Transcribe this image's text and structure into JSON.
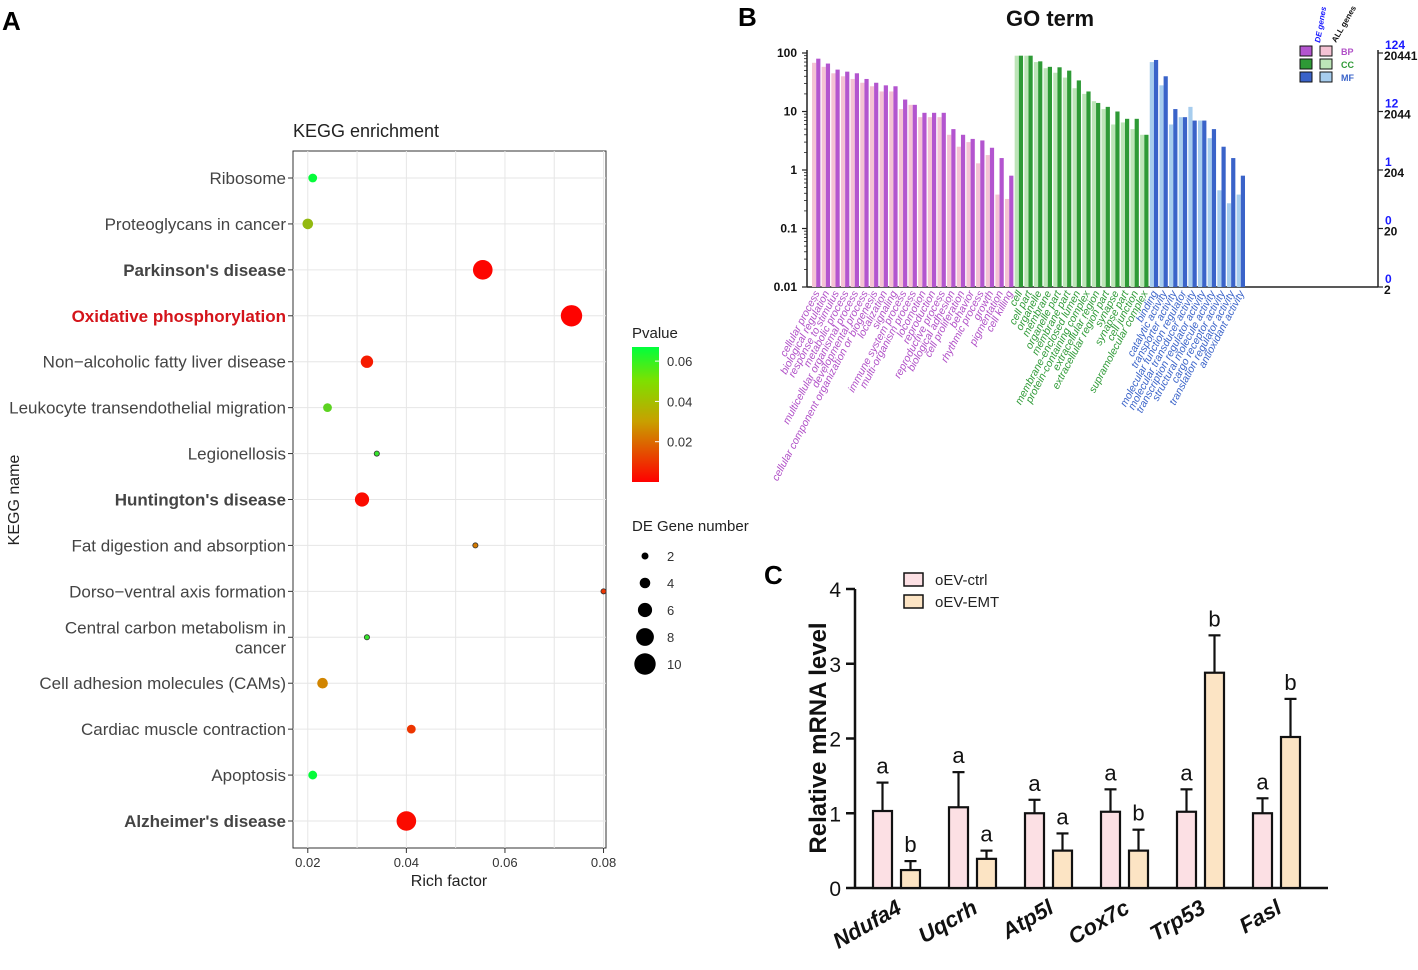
{
  "panels": {
    "a": "A",
    "b": "B",
    "c": "C"
  },
  "chart_data": [
    {
      "type": "scatter",
      "title": "KEGG enrichment",
      "xlabel": "Rich factor",
      "ylabel": "KEGG name",
      "xlim": [
        0.017,
        0.0805
      ],
      "xticks": [
        0.02,
        0.04,
        0.06,
        0.08
      ],
      "xtick_labels": [
        "0.02",
        "0.04",
        "0.06",
        "0.08"
      ],
      "grid": true,
      "pathways": [
        {
          "name": "Ribosome",
          "style": "normal",
          "x": 0.021,
          "genes": 3,
          "pvalue": 0.066
        },
        {
          "name": "Proteoglycans in cancer",
          "style": "normal",
          "x": 0.02,
          "genes": 4,
          "pvalue": 0.04
        },
        {
          "name": "Parkinson's disease",
          "style": "bold",
          "x": 0.0555,
          "genes": 9,
          "pvalue": 0.001
        },
        {
          "name": "Oxidative phosphorylation",
          "style": "red",
          "x": 0.0735,
          "genes": 10,
          "pvalue": 0.0005
        },
        {
          "name": "Non−alcoholic fatty liver disease",
          "style": "normal",
          "x": 0.032,
          "genes": 5,
          "pvalue": 0.005
        },
        {
          "name": "Leukocyte transendothelial migration",
          "style": "normal",
          "x": 0.024,
          "genes": 3,
          "pvalue": 0.05
        },
        {
          "name": "Legionellosis",
          "style": "normal",
          "x": 0.034,
          "genes": 1,
          "pvalue": 0.057
        },
        {
          "name": "Huntington's disease",
          "style": "bold",
          "x": 0.031,
          "genes": 6,
          "pvalue": 0.002
        },
        {
          "name": "Fat digestion and absorption",
          "style": "normal",
          "x": 0.054,
          "genes": 1,
          "pvalue": 0.023
        },
        {
          "name": "Dorso−ventral axis formation",
          "style": "normal",
          "x": 0.08,
          "genes": 1,
          "pvalue": 0.01
        },
        {
          "name": "Central carbon metabolism in\ncancer",
          "style": "normal",
          "x": 0.032,
          "genes": 1,
          "pvalue": 0.057
        },
        {
          "name": "Cell adhesion molecules (CAMs)",
          "style": "normal",
          "x": 0.023,
          "genes": 4,
          "pvalue": 0.025
        },
        {
          "name": "Cardiac muscle contraction",
          "style": "normal",
          "x": 0.041,
          "genes": 3,
          "pvalue": 0.01
        },
        {
          "name": "Apoptosis",
          "style": "normal",
          "x": 0.021,
          "genes": 3,
          "pvalue": 0.066
        },
        {
          "name": "Alzheimer's disease",
          "style": "bold",
          "x": 0.04,
          "genes": 9,
          "pvalue": 0.002
        }
      ],
      "color_legend": {
        "title": "Pvalue",
        "ticks": [
          "0.06",
          "0.04",
          "0.02"
        ],
        "tick_values": [
          0.06,
          0.04,
          0.02
        ],
        "range": [
          0.0,
          0.067
        ],
        "low_color": "#ff0000",
        "mid_color": "#c8a000",
        "high_color": "#00ff3c"
      },
      "size_legend": {
        "title": "DE Gene number",
        "labels": [
          "2",
          "4",
          "6",
          "8",
          "10"
        ],
        "values": [
          2,
          4,
          6,
          8,
          10
        ]
      }
    },
    {
      "type": "bar",
      "title": "GO term",
      "yscale": "log",
      "left_ticks": [
        "100",
        "10",
        "1",
        "0.1",
        "0.01"
      ],
      "right_de_ticks": [
        "124",
        "12",
        "1",
        "0",
        "0"
      ],
      "right_all_ticks": [
        "20441",
        "2044",
        "204",
        "20",
        "2"
      ],
      "legend_headers": [
        "DE genes",
        "ALL genes"
      ],
      "legend_items": [
        "BP",
        "CC",
        "MF"
      ],
      "categories": [
        {
          "name": "BP",
          "color_de": "#b355cf",
          "color_all": "#f4c2d4",
          "label_color": "#b04fc7",
          "terms": [
            {
              "label": "cellular process",
              "de": 80,
              "all": 68
            },
            {
              "label": "biological regulation",
              "de": 66,
              "all": 58
            },
            {
              "label": "response to stimulus",
              "de": 52,
              "all": 45
            },
            {
              "label": "metabolic process",
              "de": 48,
              "all": 40
            },
            {
              "label": "multicellular organismal process",
              "de": 45,
              "all": 36
            },
            {
              "label": "developmental process",
              "de": 36,
              "all": 31
            },
            {
              "label": "cellular component organization or biogenesis",
              "de": 31,
              "all": 27
            },
            {
              "label": "localization",
              "de": 28,
              "all": 22
            },
            {
              "label": "signaling",
              "de": 27,
              "all": 22
            },
            {
              "label": "immune system process",
              "de": 16,
              "all": 11
            },
            {
              "label": "multi-organism process",
              "de": 13,
              "all": 13
            },
            {
              "label": "locomotion",
              "de": 9.5,
              "all": 8
            },
            {
              "label": "reproduction",
              "de": 9.5,
              "all": 8
            },
            {
              "label": "reproductive process",
              "de": 9.5,
              "all": 8
            },
            {
              "label": "biological adhesion",
              "de": 5,
              "all": 4
            },
            {
              "label": "cell proliferation",
              "de": 4,
              "all": 2.5
            },
            {
              "label": "behavior",
              "de": 3.4,
              "all": 3
            },
            {
              "label": "rhythmic process",
              "de": 3.2,
              "all": 1.3
            },
            {
              "label": "growth",
              "de": 2.4,
              "all": 1.8
            },
            {
              "label": "pigmentation",
              "de": 1.6,
              "all": 0.38
            },
            {
              "label": "cell killing",
              "de": 0.8,
              "all": 0.32
            }
          ]
        },
        {
          "name": "CC",
          "color_de": "#2e9a36",
          "color_all": "#bde5b8",
          "label_color": "#2e9a36",
          "terms": [
            {
              "label": "cell",
              "de": 90,
              "all": 90
            },
            {
              "label": "cell part",
              "de": 90,
              "all": 90
            },
            {
              "label": "organelle",
              "de": 72,
              "all": 70
            },
            {
              "label": "membrane",
              "de": 58,
              "all": 55
            },
            {
              "label": "organelle part",
              "de": 57,
              "all": 46
            },
            {
              "label": "membrane part",
              "de": 50,
              "all": 38
            },
            {
              "label": "membrane-enclosed lumen",
              "de": 34,
              "all": 25
            },
            {
              "label": "protein-containing complex",
              "de": 22,
              "all": 20
            },
            {
              "label": "extracellular region",
              "de": 14,
              "all": 15
            },
            {
              "label": "extracellular region part",
              "de": 12,
              "all": 11
            },
            {
              "label": "synapse",
              "de": 10,
              "all": 6
            },
            {
              "label": "synapse part",
              "de": 7.5,
              "all": 6.5
            },
            {
              "label": "cell junction",
              "de": 7.5,
              "all": 5
            },
            {
              "label": "supramolecular complex",
              "de": 4,
              "all": 4
            }
          ]
        },
        {
          "name": "MF",
          "color_de": "#3a63c9",
          "color_all": "#a7cdee",
          "label_color": "#3a63c9",
          "terms": [
            {
              "label": "binding",
              "de": 76,
              "all": 70
            },
            {
              "label": "catalytic activity",
              "de": 40,
              "all": 28
            },
            {
              "label": "transporter activity",
              "de": 11,
              "all": 6
            },
            {
              "label": "molecular function regulator",
              "de": 8,
              "all": 8
            },
            {
              "label": "molecular transducer activity",
              "de": 7,
              "all": 12
            },
            {
              "label": "transcription regulator activity",
              "de": 7,
              "all": 7
            },
            {
              "label": "structural molecule activity",
              "de": 5,
              "all": 3.5
            },
            {
              "label": "cargo receptor activity",
              "de": 2.5,
              "all": 0.45
            },
            {
              "label": "translation regulator activity",
              "de": 1.6,
              "all": 0.27
            },
            {
              "label": "antioxidant activity",
              "de": 0.8,
              "all": 0.38
            }
          ]
        }
      ]
    },
    {
      "type": "bar",
      "ylabel": "Relative mRNA level",
      "ylim": [
        0,
        4
      ],
      "yticks": [
        "0",
        "1",
        "2",
        "3",
        "4"
      ],
      "categories": [
        "Ndufa4",
        "Uqcrh",
        "Atp5l",
        "Cox7c",
        "Trp53",
        "Fasl"
      ],
      "series": [
        {
          "name": "oEV-ctrl",
          "color": "#fce0e4",
          "values": [
            1.03,
            1.08,
            1.0,
            1.02,
            1.02,
            1.0
          ],
          "errors": [
            0.38,
            0.47,
            0.18,
            0.3,
            0.3,
            0.2
          ],
          "letters": [
            "a",
            "a",
            "a",
            "a",
            "a",
            "a"
          ]
        },
        {
          "name": "oEV-EMT",
          "color": "#fce4c4",
          "values": [
            0.24,
            0.39,
            0.5,
            0.5,
            2.88,
            2.02
          ],
          "errors": [
            0.12,
            0.11,
            0.23,
            0.28,
            0.5,
            0.51
          ],
          "letters": [
            "b",
            "a",
            "a",
            "b",
            "b",
            "b"
          ]
        }
      ]
    }
  ]
}
